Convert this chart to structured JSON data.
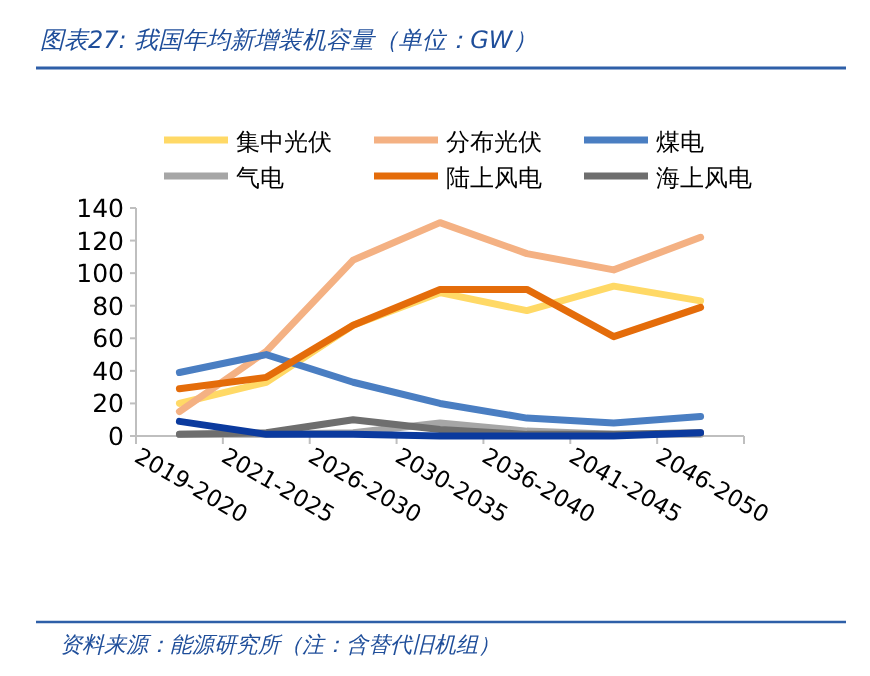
{
  "chart_data": {
    "type": "line",
    "title": "图表27: 我国年均新增装机容量（单位：GW）",
    "annotations": [
      "资料来源：能源研究所（注：含替代旧机组）"
    ],
    "categories": [
      "2019-2020",
      "2021-2025",
      "2026-2030",
      "2030-2035",
      "2036-2040",
      "2041-2045",
      "2046-2050"
    ],
    "ylim": [
      0,
      140
    ],
    "yticks": [
      0,
      20,
      40,
      60,
      80,
      100,
      120,
      140
    ],
    "legend": "top",
    "series": [
      {
        "name": "集中光伏",
        "color": "#ffd966",
        "values": [
          20,
          33,
          68,
          88,
          77,
          92,
          83
        ]
      },
      {
        "name": "分布光伏",
        "color": "#f4b183",
        "values": [
          15,
          52,
          108,
          131,
          112,
          102,
          122
        ]
      },
      {
        "name": "煤电",
        "color": "#4a7ec2",
        "values": [
          39,
          50,
          33,
          20,
          11,
          8,
          12
        ]
      },
      {
        "name": "气电",
        "color": "#a6a6a6",
        "values": [
          1,
          1,
          2,
          8,
          3,
          1,
          1
        ]
      },
      {
        "name": "陆上风电",
        "color": "#e46c0a",
        "values": [
          29,
          36,
          68,
          90,
          90,
          61,
          79
        ]
      },
      {
        "name": "海上风电",
        "color": "#6e6e6e",
        "values": [
          1,
          2,
          10,
          4,
          1,
          1,
          2
        ]
      },
      {
        "color": "#0b3a9e",
        "values": [
          9,
          1,
          1,
          0,
          0,
          0,
          2
        ]
      }
    ]
  }
}
